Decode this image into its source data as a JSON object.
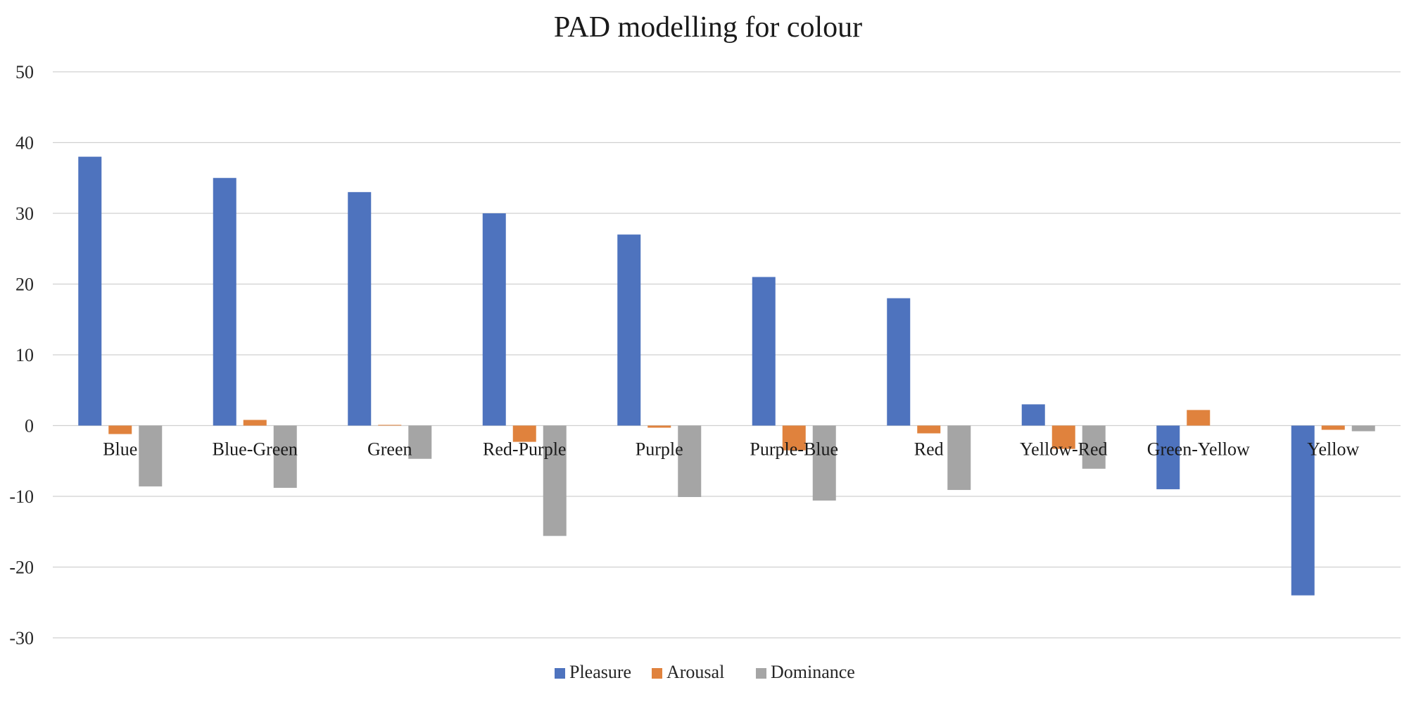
{
  "chart_data": {
    "type": "bar",
    "title": "PAD modelling for colour",
    "xlabel": "",
    "ylabel": "",
    "ylim": [
      -30,
      50
    ],
    "yticks": [
      50,
      40,
      30,
      20,
      10,
      0,
      -10,
      -20,
      -30
    ],
    "grid": true,
    "legend_position": "bottom",
    "categories": [
      "Blue",
      "Blue-Green",
      "Green",
      "Red-Purple",
      "Purple",
      "Purple-Blue",
      "Red",
      "Yellow-Red",
      "Green-Yellow",
      "Yellow"
    ],
    "series": [
      {
        "name": "Pleasure",
        "color": "#4e73be",
        "values": [
          38,
          35,
          33,
          30,
          27,
          21,
          18,
          3,
          -9,
          -24
        ]
      },
      {
        "name": "Arousal",
        "color": "#e0823d",
        "values": [
          -1.2,
          0.8,
          0.1,
          -2.3,
          -0.3,
          -3.5,
          -1.1,
          -3.3,
          2.2,
          -0.6
        ]
      },
      {
        "name": "Dominance",
        "color": "#a5a5a5",
        "values": [
          -8.6,
          -8.8,
          -4.7,
          -15.6,
          -10.1,
          -10.6,
          -9.1,
          -6.1,
          0,
          -0.8
        ]
      }
    ]
  }
}
